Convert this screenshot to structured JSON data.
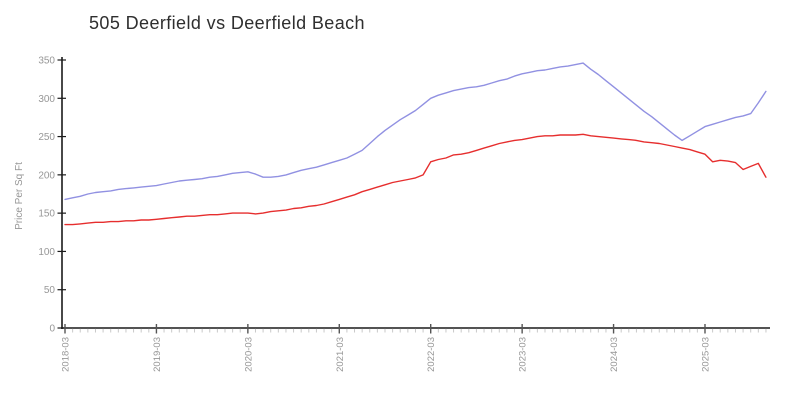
{
  "page": {
    "background": "#ffffff"
  },
  "chart_data": {
    "type": "line",
    "title": "505 Deerfield vs Deerfield Beach",
    "xlabel": "",
    "ylabel": "Price Per Sq Ft",
    "ylim": [
      0,
      350
    ],
    "y_ticks": [
      0,
      50,
      100,
      150,
      200,
      250,
      300,
      350
    ],
    "x_major_tick_labels": [
      "2018-03",
      "2019-03",
      "2020-03",
      "2021-03",
      "2022-03",
      "2023-03",
      "2024-03",
      "2025-03"
    ],
    "x_major_tick_every_months": 12,
    "grid": false,
    "legend": "none",
    "axis_color": "#1a1a1a",
    "major_tick_color": "#555555",
    "minor_tick_color": "#c9c9c9",
    "tick_label_color": "#979797",
    "x": [
      "2018-03",
      "2018-04",
      "2018-05",
      "2018-06",
      "2018-07",
      "2018-08",
      "2018-09",
      "2018-10",
      "2018-11",
      "2018-12",
      "2019-01",
      "2019-02",
      "2019-03",
      "2019-04",
      "2019-05",
      "2019-06",
      "2019-07",
      "2019-08",
      "2019-09",
      "2019-10",
      "2019-11",
      "2019-12",
      "2020-01",
      "2020-02",
      "2020-03",
      "2020-04",
      "2020-05",
      "2020-06",
      "2020-07",
      "2020-08",
      "2020-09",
      "2020-10",
      "2020-11",
      "2020-12",
      "2021-01",
      "2021-02",
      "2021-03",
      "2021-04",
      "2021-05",
      "2021-06",
      "2021-07",
      "2021-08",
      "2021-09",
      "2021-10",
      "2021-11",
      "2021-12",
      "2022-01",
      "2022-02",
      "2022-03",
      "2022-04",
      "2022-05",
      "2022-06",
      "2022-07",
      "2022-08",
      "2022-09",
      "2022-10",
      "2022-11",
      "2022-12",
      "2023-01",
      "2023-02",
      "2023-03",
      "2023-04",
      "2023-05",
      "2023-06",
      "2023-07",
      "2023-08",
      "2023-09",
      "2023-10",
      "2023-11",
      "2023-12",
      "2024-01",
      "2024-02",
      "2024-03",
      "2024-04",
      "2024-05",
      "2024-06",
      "2024-07",
      "2024-08",
      "2024-09",
      "2024-10",
      "2024-11",
      "2024-12",
      "2025-01",
      "2025-02",
      "2025-03",
      "2025-04",
      "2025-05",
      "2025-06",
      "2025-07",
      "2025-08",
      "2025-09",
      "2025-10",
      "2025-11"
    ],
    "series": [
      {
        "name": "505 Deerfield",
        "color": "#9191e2",
        "values": [
          168,
          170,
          172,
          175,
          177,
          178,
          179,
          181,
          182,
          183,
          184,
          185,
          186,
          188,
          190,
          192,
          193,
          194,
          195,
          197,
          198,
          200,
          202,
          203,
          204,
          201,
          197,
          197,
          198,
          200,
          203,
          206,
          208,
          210,
          213,
          216,
          219,
          222,
          227,
          232,
          241,
          250,
          258,
          265,
          272,
          278,
          284,
          292,
          300,
          304,
          307,
          310,
          312,
          314,
          315,
          317,
          320,
          323,
          325,
          329,
          332,
          334,
          336,
          337,
          339,
          341,
          342,
          344,
          346,
          338,
          331,
          323,
          315,
          307,
          299,
          291,
          283,
          276,
          268,
          260,
          252,
          245,
          251,
          257,
          263,
          266,
          269,
          272,
          275,
          277,
          280,
          294,
          309
        ]
      },
      {
        "name": "Deerfield Beach",
        "color": "#e62e2e",
        "values": [
          135,
          135,
          136,
          137,
          138,
          138,
          139,
          139,
          140,
          140,
          141,
          141,
          142,
          143,
          144,
          145,
          146,
          146,
          147,
          148,
          148,
          149,
          150,
          150,
          150,
          149,
          150,
          152,
          153,
          154,
          156,
          157,
          159,
          160,
          162,
          165,
          168,
          171,
          174,
          178,
          181,
          184,
          187,
          190,
          192,
          194,
          196,
          200,
          217,
          220,
          222,
          226,
          227,
          229,
          232,
          235,
          238,
          241,
          243,
          245,
          246,
          248,
          250,
          251,
          251,
          252,
          252,
          252,
          253,
          251,
          250,
          249,
          248,
          247,
          246,
          245,
          243,
          242,
          241,
          239,
          237,
          235,
          233,
          230,
          227,
          217,
          219,
          218,
          216,
          207,
          211,
          215,
          197
        ]
      }
    ]
  }
}
